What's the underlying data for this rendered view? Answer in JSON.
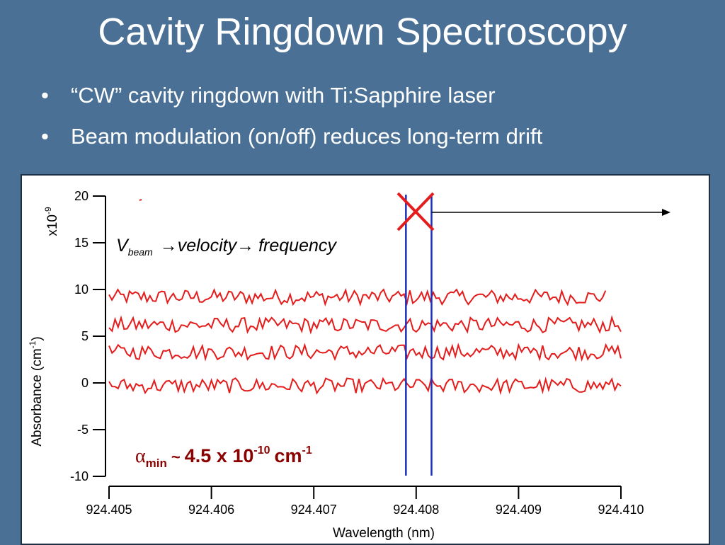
{
  "slide": {
    "title": "Cavity Ringdown Spectroscopy",
    "bullets": [
      "“CW” cavity ringdown with Ti:Sapphire laser",
      "Beam modulation (on/off) reduces long-term drift"
    ]
  },
  "figure": {
    "equation": {
      "v": "V",
      "sub": "beam",
      "arrow": "→",
      "velocity": "velocity",
      "frequency": "frequency"
    },
    "alpha": {
      "symbol": "α",
      "sub": "min",
      "tilde": "~",
      "mantissa": "4.5 x 10",
      "exp": "-10",
      "unit": "cm",
      "unit_exp": "-1"
    },
    "colors": {
      "trace": "#e41c1c",
      "marker": "#1c2fbf",
      "cross": "#e41c1c",
      "alpha_text": "#8b0000"
    }
  },
  "chart_data": {
    "type": "line",
    "xlabel": "Wavelength (nm)",
    "ylabel_main": "Absorbance (cm",
    "ylabel_exp": "-1",
    "ylabel_end": ")",
    "scale_prefix": "x10",
    "scale_exp": "-9",
    "xlim": [
      924.405,
      924.41
    ],
    "ylim": [
      -10,
      20
    ],
    "x_ticks": [
      "924.405",
      "924.406",
      "924.407",
      "924.408",
      "924.409",
      "924.410"
    ],
    "x_tick_values": [
      924.405,
      924.406,
      924.407,
      924.408,
      924.409,
      924.41
    ],
    "y_ticks": [
      "20",
      "15",
      "10",
      "5",
      "0",
      "-5",
      "-10"
    ],
    "y_tick_values": [
      20,
      15,
      10,
      5,
      0,
      -5,
      -10
    ],
    "vertical_markers_x": [
      924.4079,
      924.40815
    ],
    "series": [
      {
        "x_start": 924.405,
        "x_end": 924.40985,
        "baseline": 9.2,
        "amplitude": 0.8
      },
      {
        "x_start": 924.405,
        "x_end": 924.41,
        "baseline": 6.2,
        "amplitude": 0.8
      },
      {
        "x_start": 924.405,
        "x_end": 924.41,
        "baseline": 3.3,
        "amplitude": 0.8
      },
      {
        "x_start": 924.405,
        "x_end": 924.41,
        "baseline": -0.3,
        "amplitude": 0.8
      }
    ]
  }
}
